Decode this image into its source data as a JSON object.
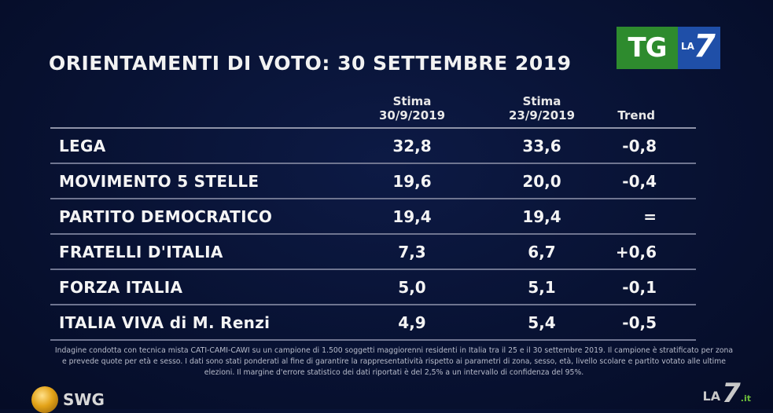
{
  "title": "ORIENTAMENTI DI VOTO: 30 SETTEMBRE 2019",
  "logo": {
    "tg": "TG",
    "la": "LA",
    "seven": "7"
  },
  "chart_data": {
    "type": "table",
    "columns": [
      {
        "line1": "",
        "line2": ""
      },
      {
        "line1": "Stima",
        "line2": "30/9/2019"
      },
      {
        "line1": "Stima",
        "line2": "23/9/2019"
      },
      {
        "line1": "Trend",
        "line2": ""
      }
    ],
    "rows": [
      {
        "party": "LEGA",
        "stima_30_9": "32,8",
        "stima_23_9": "33,6",
        "trend": "-0,8"
      },
      {
        "party": "MOVIMENTO 5 STELLE",
        "stima_30_9": "19,6",
        "stima_23_9": "20,0",
        "trend": "-0,4"
      },
      {
        "party": "PARTITO DEMOCRATICO",
        "stima_30_9": "19,4",
        "stima_23_9": "19,4",
        "trend": "="
      },
      {
        "party": "FRATELLI D'ITALIA",
        "stima_30_9": "7,3",
        "stima_23_9": "6,7",
        "trend": "+0,6"
      },
      {
        "party": "FORZA ITALIA",
        "stima_30_9": "5,0",
        "stima_23_9": "5,1",
        "trend": "-0,1"
      },
      {
        "party": "ITALIA VIVA di M. Renzi",
        "stima_30_9": "4,9",
        "stima_23_9": "5,4",
        "trend": "-0,5"
      }
    ]
  },
  "footnote": "Indagine condotta con tecnica mista CATI-CAMI-CAWI su un campione di 1.500 soggetti maggiorenni residenti in Italia tra il 25 e il 30 settembre 2019. Il campione è stratificato per zona e prevede quote per età e sesso. I dati sono stati ponderati al fine di garantire la rappresentatività rispetto ai parametri di zona, sesso, età, livello scolare e partito votato alle ultime elezioni. Il margine d'errore statistico dei dati riportati è del 2,5% a un intervallo di confidenza del 95%.",
  "source_logo": "SWG",
  "watermark": {
    "la": "LA",
    "seven": "7",
    "it": ".it"
  }
}
